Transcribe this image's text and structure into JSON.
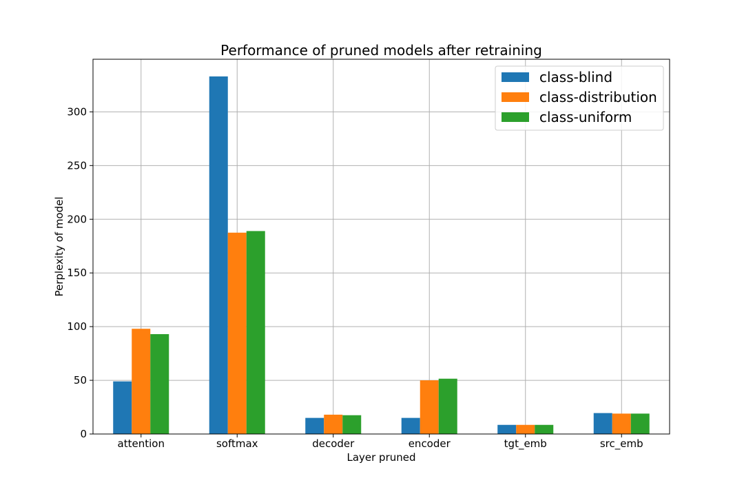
{
  "chart_data": {
    "type": "bar",
    "title": "Performance of pruned models after retraining",
    "xlabel": "Layer pruned",
    "ylabel": "Perplexity of model",
    "categories": [
      "attention",
      "softmax",
      "decoder",
      "encoder",
      "tgt_emb",
      "src_emb"
    ],
    "series": [
      {
        "name": "class-blind",
        "color": "#1f77b4",
        "values": [
          49,
          333,
          15,
          15,
          8.5,
          19.5
        ]
      },
      {
        "name": "class-distribution",
        "color": "#ff7f0e",
        "values": [
          98,
          187.5,
          18,
          50,
          8.5,
          19
        ]
      },
      {
        "name": "class-uniform",
        "color": "#2ca02c",
        "values": [
          93,
          189,
          17.5,
          51.5,
          8.5,
          19
        ]
      }
    ],
    "ylim": [
      0,
      349
    ],
    "yticks": [
      0,
      50,
      100,
      150,
      200,
      250,
      300
    ],
    "grid": true,
    "legend_position": "top-right"
  }
}
